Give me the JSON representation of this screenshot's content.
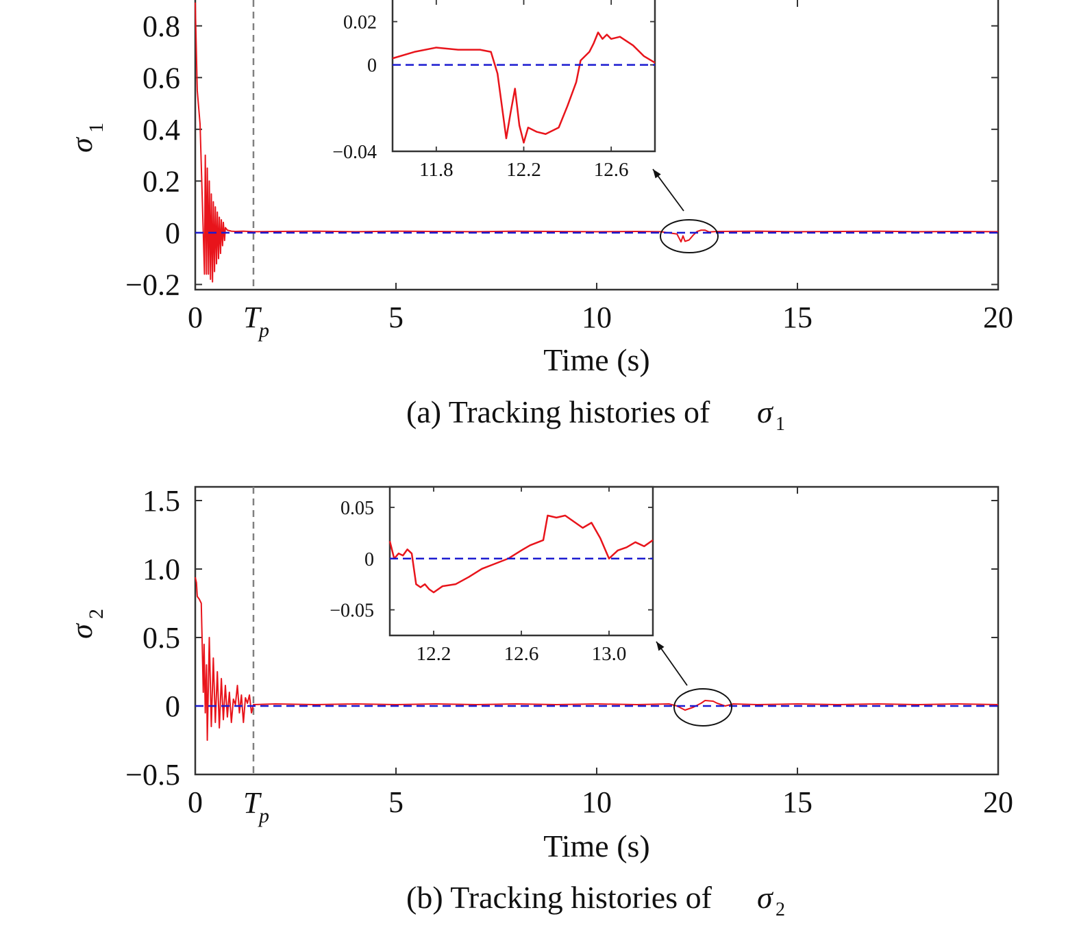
{
  "charts": [
    {
      "panel": "a",
      "caption": {
        "prefix": "(a) Tracking histories of ",
        "symbol": "σ",
        "subscript": "1"
      },
      "ylabel": {
        "symbol": "σ",
        "subscript": "1"
      },
      "xlabel": "Time (s)",
      "tp_label": {
        "main": "T",
        "sub": "p"
      },
      "inset_x_ticks": [
        "11.8",
        "12.2",
        "12.6"
      ],
      "inset_y_ticks": [
        "0.02",
        "0",
        "−0.04"
      ]
    },
    {
      "panel": "b",
      "caption": {
        "prefix": "(b) Tracking histories of ",
        "symbol": "σ",
        "subscript": "2"
      },
      "ylabel": {
        "symbol": "σ",
        "subscript": "2"
      },
      "xlabel": "Time (s)",
      "tp_label": {
        "main": "T",
        "sub": "p"
      },
      "inset_x_ticks": [
        "12.2",
        "12.6",
        "13.0"
      ],
      "inset_y_ticks": [
        "0.05",
        "0",
        "−0.05"
      ]
    }
  ],
  "colors": {
    "signal": "#e8141b",
    "reference": "#1a1ad0",
    "marker": "#808080",
    "axes": "#333333"
  },
  "chart_data": [
    {
      "type": "line",
      "xlim": [
        0,
        20
      ],
      "ylim": [
        -0.22,
        0.9
      ],
      "x_ticks": [
        0,
        5,
        10,
        15,
        20
      ],
      "y_ticks": [
        -0.2,
        0,
        0.2,
        0.4,
        0.6,
        0.8
      ],
      "y_tick_labels": [
        "−0.2",
        "0",
        "0.2",
        "0.4",
        "0.6",
        "0.8"
      ],
      "tp": 1.45,
      "series": [
        {
          "role": "signal",
          "x": [
            0,
            0.05,
            0.12,
            0.2,
            0.23,
            0.25,
            0.28,
            0.3,
            0.33,
            0.35,
            0.38,
            0.4,
            0.43,
            0.45,
            0.48,
            0.5,
            0.53,
            0.55,
            0.58,
            0.6,
            0.63,
            0.65,
            0.68,
            0.7,
            0.73,
            0.75,
            0.8,
            0.9,
            1.0,
            1.2,
            1.45,
            2,
            3,
            4,
            5,
            6,
            7,
            8,
            9,
            10,
            11,
            11.6,
            12.0,
            12.1,
            12.15,
            12.2,
            12.3,
            12.4,
            12.5,
            12.6,
            12.7,
            12.8,
            13.0,
            14,
            15,
            16,
            17,
            18,
            19,
            20
          ],
          "y": [
            0.89,
            0.55,
            0.42,
            0.0,
            -0.16,
            0.3,
            -0.16,
            0.25,
            -0.16,
            0.2,
            -0.18,
            0.15,
            -0.19,
            0.12,
            -0.15,
            0.1,
            -0.12,
            0.08,
            -0.1,
            0.06,
            -0.08,
            0.05,
            -0.05,
            0.04,
            -0.03,
            0.02,
            0.01,
            0.006,
            0.005,
            0.006,
            0.004,
            0.005,
            0.006,
            0.004,
            0.006,
            0.005,
            0.004,
            0.006,
            0.005,
            0.004,
            0.005,
            0.004,
            -0.005,
            -0.035,
            -0.012,
            -0.033,
            -0.028,
            -0.01,
            0.005,
            0.01,
            0.01,
            0.003,
            0.005,
            0.006,
            0.004,
            0.005,
            0.006,
            0.004,
            0.005,
            0.004
          ]
        },
        {
          "role": "reference",
          "x": [
            0,
            20
          ],
          "y": [
            0,
            0
          ]
        }
      ],
      "inset": {
        "xlim": [
          11.6,
          12.8
        ],
        "ylim": [
          -0.04,
          0.03
        ],
        "x_ticks": [
          11.8,
          12.2,
          12.6
        ],
        "y_ticks": [
          0.02,
          0,
          -0.04
        ],
        "focus": {
          "x": 12.3,
          "y": 0.0
        },
        "series": [
          {
            "role": "signal",
            "x": [
              11.6,
              11.7,
              11.8,
              11.9,
              12.0,
              12.05,
              12.08,
              12.12,
              12.14,
              12.16,
              12.18,
              12.2,
              12.22,
              12.26,
              12.3,
              12.36,
              12.4,
              12.44,
              12.46,
              12.5,
              12.52,
              12.54,
              12.56,
              12.58,
              12.6,
              12.64,
              12.7,
              12.75,
              12.8
            ],
            "y": [
              0.003,
              0.006,
              0.008,
              0.007,
              0.007,
              0.006,
              -0.004,
              -0.034,
              -0.022,
              -0.011,
              -0.028,
              -0.036,
              -0.029,
              -0.031,
              -0.032,
              -0.029,
              -0.019,
              -0.008,
              0.002,
              0.006,
              0.01,
              0.015,
              0.012,
              0.014,
              0.012,
              0.013,
              0.009,
              0.004,
              0.001
            ]
          },
          {
            "role": "reference",
            "x": [
              11.6,
              12.8
            ],
            "y": [
              0,
              0
            ]
          }
        ]
      }
    },
    {
      "type": "line",
      "xlim": [
        0,
        20
      ],
      "ylim": [
        -0.5,
        1.6
      ],
      "x_ticks": [
        0,
        5,
        10,
        15,
        20
      ],
      "y_ticks": [
        -0.5,
        0,
        0.5,
        1.0,
        1.5
      ],
      "y_tick_labels": [
        "−0.5",
        "0",
        "0.5",
        "1.0",
        "1.5"
      ],
      "tp": 1.45,
      "series": [
        {
          "role": "signal",
          "x": [
            0,
            0.03,
            0.05,
            0.1,
            0.15,
            0.2,
            0.22,
            0.25,
            0.28,
            0.3,
            0.35,
            0.4,
            0.45,
            0.5,
            0.55,
            0.6,
            0.65,
            0.7,
            0.75,
            0.8,
            0.85,
            0.9,
            0.95,
            1.0,
            1.05,
            1.1,
            1.15,
            1.2,
            1.25,
            1.3,
            1.35,
            1.4,
            1.45,
            2,
            3,
            4,
            5,
            6,
            7,
            8,
            9,
            10,
            11,
            11.8,
            12.0,
            12.2,
            12.4,
            12.6,
            12.7,
            12.9,
            13.0,
            13.2,
            13.4,
            14,
            15,
            16,
            17,
            18,
            19,
            20
          ],
          "y": [
            0.94,
            0.9,
            0.8,
            0.78,
            0.75,
            0.1,
            0.45,
            -0.05,
            0.3,
            -0.25,
            0.5,
            -0.15,
            0.35,
            -0.12,
            0.25,
            -0.16,
            0.2,
            -0.1,
            0.15,
            -0.08,
            0.1,
            -0.12,
            0.05,
            0.01,
            0.15,
            -0.05,
            0.08,
            -0.12,
            0.06,
            0.02,
            0.08,
            -0.05,
            0.01,
            0.015,
            0.01,
            0.015,
            0.01,
            0.015,
            0.01,
            0.015,
            0.01,
            0.015,
            0.01,
            0.015,
            0.0,
            -0.03,
            -0.01,
            0.02,
            0.04,
            0.035,
            0.02,
            0.0,
            0.015,
            0.01,
            0.015,
            0.01,
            0.015,
            0.01,
            0.015,
            0.01
          ]
        },
        {
          "role": "reference",
          "x": [
            0,
            20
          ],
          "y": [
            0,
            0
          ]
        }
      ],
      "inset": {
        "xlim": [
          12.0,
          13.2
        ],
        "ylim": [
          -0.075,
          0.07
        ],
        "x_ticks": [
          12.2,
          12.6,
          13.0
        ],
        "y_ticks": [
          0.05,
          0,
          -0.05
        ],
        "focus": {
          "x": 12.55,
          "y": 0.0
        },
        "series": [
          {
            "role": "signal",
            "x": [
              12.0,
              12.02,
              12.04,
              12.06,
              12.08,
              12.1,
              12.12,
              12.14,
              12.16,
              12.18,
              12.2,
              12.24,
              12.3,
              12.36,
              12.42,
              12.48,
              12.54,
              12.6,
              12.64,
              12.7,
              12.72,
              12.76,
              12.8,
              12.84,
              12.88,
              12.92,
              12.96,
              13.0,
              13.04,
              13.08,
              13.12,
              13.16,
              13.2
            ],
            "y": [
              0.017,
              0.0,
              0.005,
              0.003,
              0.009,
              0.005,
              -0.025,
              -0.028,
              -0.025,
              -0.03,
              -0.033,
              -0.027,
              -0.025,
              -0.018,
              -0.01,
              -0.005,
              0.0,
              0.008,
              0.013,
              0.018,
              0.042,
              0.04,
              0.042,
              0.036,
              0.03,
              0.035,
              0.02,
              0.0,
              0.008,
              0.011,
              0.016,
              0.012,
              0.018
            ]
          },
          {
            "role": "reference",
            "x": [
              12.0,
              13.2
            ],
            "y": [
              0,
              0
            ]
          }
        ]
      }
    }
  ]
}
